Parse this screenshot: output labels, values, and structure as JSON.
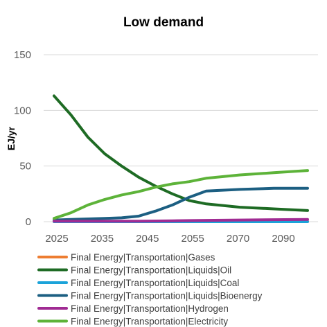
{
  "chart_data": {
    "type": "line",
    "title": "Low demand",
    "xlabel": "",
    "ylabel": "EJ/yr",
    "x": [
      2025,
      2030,
      2035,
      2040,
      2045,
      2050,
      2055,
      2060,
      2065,
      2070,
      2080,
      2090,
      2100
    ],
    "x_tick_labels": [
      "2025",
      "2035",
      "2045",
      "2055",
      "2070",
      "2090"
    ],
    "y_ticks": [
      0,
      50,
      100,
      150
    ],
    "ylim": [
      0,
      150
    ],
    "grid": true,
    "legend_position": "bottom",
    "series": [
      {
        "name": "Final Energy|Transportation|Gases",
        "color": "#ED7D31",
        "values": [
          0.2,
          0.2,
          0.2,
          0.2,
          0.2,
          0.2,
          0.2,
          0.2,
          0.2,
          0.2,
          0.2,
          0.2,
          0.2
        ]
      },
      {
        "name": "Final Energy|Transportation|Liquids|Oil",
        "color": "#1E6B24",
        "values": [
          113,
          96,
          76,
          61,
          50,
          40,
          32,
          25,
          19,
          16,
          13,
          11.5,
          10
        ]
      },
      {
        "name": "Final Energy|Transportation|Liquids|Coal",
        "color": "#1BA3D9",
        "values": [
          0,
          0,
          0,
          0,
          0,
          0,
          0,
          0,
          0,
          0,
          0,
          0,
          0
        ]
      },
      {
        "name": "Final Energy|Transportation|Liquids|Bioenergy",
        "color": "#1C5F82",
        "values": [
          1.5,
          2,
          2.5,
          3,
          3.5,
          5,
          9.5,
          15,
          22,
          27.5,
          29,
          30,
          30
        ]
      },
      {
        "name": "Final Energy|Transportation|Hydrogen",
        "color": "#A02B93",
        "values": [
          0.5,
          0.5,
          0.5,
          0.5,
          0.5,
          0.5,
          0.6,
          0.8,
          1,
          1.2,
          1.5,
          1.8,
          2
        ]
      },
      {
        "name": "Final Energy|Transportation|Electricity",
        "color": "#5DB339",
        "values": [
          3,
          8,
          15,
          20,
          24,
          27,
          31,
          34,
          36,
          39,
          42,
          44,
          46
        ]
      }
    ]
  }
}
